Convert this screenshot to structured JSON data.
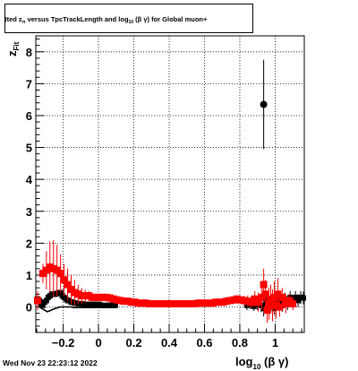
{
  "header": {
    "title_pre": "itted  z",
    "title_sub1": "π",
    "title_mid": "  versus  TpcTrackLength  and  log",
    "title_sub2": "10",
    "title_post": " (β γ) for Global muon+"
  },
  "footer": {
    "timestamp": "Wed Nov 23 22:23:12 2022"
  },
  "chart_data": {
    "type": "scatter",
    "title": "itted zπ versus TpcTrackLength and log10(βγ) for Global muon+",
    "xlabel_main": "log",
    "xlabel_sub": "10",
    "xlabel_tail": " (β γ)",
    "ylabel_main": "z",
    "ylabel_sub": "Fit",
    "xlim": [
      -0.355,
      1.165
    ],
    "ylim": [
      -0.8,
      8.5
    ],
    "grid": true,
    "xticks": [
      -0.2,
      0,
      0.2,
      0.4,
      0.6,
      0.8,
      1
    ],
    "xtick_labels": [
      "−0.2",
      "0",
      "0.2",
      "0.4",
      "0.6",
      "0.8",
      "1"
    ],
    "yticks": [
      0,
      1,
      2,
      3,
      4,
      5,
      6,
      7,
      8
    ],
    "ytick_labels": [
      "0",
      "1",
      "2",
      "3",
      "4",
      "5",
      "6",
      "7",
      "8"
    ],
    "series": [
      {
        "color": "#000000",
        "marker": "square",
        "points": [
          [
            -0.345,
            0.25,
            0.05
          ],
          [
            -0.335,
            0.2,
            0.05
          ],
          [
            -0.325,
            0.1,
            0.05
          ],
          [
            -0.315,
            0.05,
            0.05
          ],
          [
            -0.305,
            0.15,
            0.05
          ],
          [
            -0.295,
            0.2,
            0.05
          ],
          [
            -0.285,
            0.3,
            0.05
          ],
          [
            -0.275,
            0.35,
            0.05
          ],
          [
            -0.265,
            0.4,
            0.05
          ],
          [
            -0.255,
            0.4,
            0.05
          ],
          [
            -0.245,
            0.4,
            0.05
          ],
          [
            -0.235,
            0.42,
            0.05
          ],
          [
            -0.225,
            0.45,
            0.05
          ],
          [
            -0.215,
            0.45,
            0.05
          ],
          [
            -0.205,
            0.35,
            0.05
          ],
          [
            -0.195,
            0.3,
            0.05
          ],
          [
            -0.185,
            0.25,
            0.05
          ],
          [
            -0.175,
            0.2,
            0.05
          ],
          [
            -0.165,
            0.2,
            0.05
          ],
          [
            -0.155,
            0.15,
            0.05
          ],
          [
            -0.145,
            0.15,
            0.05
          ],
          [
            -0.135,
            0.12,
            0.05
          ],
          [
            -0.125,
            0.12,
            0.05
          ],
          [
            -0.115,
            0.1,
            0.05
          ],
          [
            -0.105,
            0.1,
            0.05
          ],
          [
            -0.095,
            0.1,
            0.05
          ],
          [
            -0.085,
            0.08,
            0.05
          ],
          [
            -0.075,
            0.08,
            0.05
          ],
          [
            -0.065,
            0.08,
            0.05
          ],
          [
            -0.055,
            0.08,
            0.05
          ],
          [
            -0.045,
            0.08,
            0.05
          ],
          [
            -0.035,
            0.08,
            0.05
          ],
          [
            -0.025,
            0.08,
            0.05
          ],
          [
            -0.015,
            0.08,
            0.05
          ],
          [
            -0.005,
            0.08,
            0.05
          ],
          [
            0.005,
            0.08,
            0.05
          ],
          [
            0.015,
            0.05,
            0.05
          ],
          [
            0.025,
            0.05,
            0.05
          ],
          [
            0.035,
            0.05,
            0.05
          ],
          [
            0.045,
            0.05,
            0.05
          ],
          [
            0.055,
            0.05,
            0.05
          ],
          [
            0.065,
            0.05,
            0.05
          ],
          [
            0.075,
            0.05,
            0.05
          ],
          [
            0.085,
            0.05,
            0.05
          ],
          [
            0.095,
            0.05,
            0.05
          ],
          [
            0.84,
            0.05,
            0.15
          ],
          [
            0.86,
            0.08,
            0.15
          ],
          [
            0.88,
            0.02,
            0.15
          ],
          [
            0.9,
            0.1,
            0.2
          ],
          [
            0.92,
            0.05,
            0.2
          ],
          [
            0.935,
            -0.05,
            0.25
          ],
          [
            0.95,
            0.12,
            0.2
          ],
          [
            0.965,
            0.05,
            0.2
          ],
          [
            0.98,
            0.15,
            0.2
          ],
          [
            0.995,
            -0.05,
            0.2
          ],
          [
            1.01,
            0.1,
            0.2
          ],
          [
            1.025,
            0.2,
            0.2
          ],
          [
            1.04,
            0.05,
            0.2
          ],
          [
            1.055,
            0.25,
            0.2
          ],
          [
            1.07,
            0.1,
            0.2
          ],
          [
            1.085,
            0.3,
            0.2
          ],
          [
            1.1,
            0.15,
            0.2
          ],
          [
            1.115,
            0.3,
            0.2
          ],
          [
            1.13,
            0.2,
            0.2
          ],
          [
            1.145,
            0.3,
            0.2
          ],
          [
            1.16,
            0.28,
            0.2
          ]
        ]
      },
      {
        "color": "#ff0000",
        "marker": "square",
        "points": [
          [
            -0.345,
            0.2,
            0.3
          ],
          [
            -0.315,
            1.05,
            0.3
          ],
          [
            -0.295,
            1.15,
            0.6
          ],
          [
            -0.275,
            1.25,
            0.8
          ],
          [
            -0.255,
            1.2,
            0.9
          ],
          [
            -0.235,
            1.15,
            0.8
          ],
          [
            -0.215,
            1.05,
            0.6
          ],
          [
            -0.195,
            0.85,
            0.5
          ],
          [
            -0.175,
            0.7,
            0.5
          ],
          [
            -0.155,
            0.55,
            0.45
          ],
          [
            -0.135,
            0.45,
            0.4
          ],
          [
            -0.115,
            0.4,
            0.3
          ],
          [
            -0.095,
            0.35,
            0.25
          ],
          [
            -0.075,
            0.35,
            0.2
          ],
          [
            -0.055,
            0.35,
            0.15
          ],
          [
            -0.035,
            0.3,
            0.12
          ],
          [
            -0.015,
            0.3,
            0.1
          ],
          [
            0.005,
            0.3,
            0.08
          ],
          [
            0.025,
            0.3,
            0.06
          ],
          [
            0.045,
            0.3,
            0.05
          ],
          [
            0.065,
            0.28,
            0.05
          ],
          [
            0.085,
            0.25,
            0.05
          ],
          [
            0.105,
            0.22,
            0.05
          ],
          [
            0.125,
            0.2,
            0.05
          ],
          [
            0.145,
            0.18,
            0.05
          ],
          [
            0.165,
            0.18,
            0.05
          ],
          [
            0.185,
            0.15,
            0.05
          ],
          [
            0.205,
            0.15,
            0.05
          ],
          [
            0.225,
            0.12,
            0.05
          ],
          [
            0.245,
            0.12,
            0.05
          ],
          [
            0.265,
            0.12,
            0.05
          ],
          [
            0.285,
            0.1,
            0.05
          ],
          [
            0.305,
            0.1,
            0.05
          ],
          [
            0.325,
            0.1,
            0.05
          ],
          [
            0.345,
            0.1,
            0.05
          ],
          [
            0.365,
            0.1,
            0.05
          ],
          [
            0.385,
            0.1,
            0.05
          ],
          [
            0.405,
            0.1,
            0.05
          ],
          [
            0.425,
            0.1,
            0.05
          ],
          [
            0.445,
            0.1,
            0.05
          ],
          [
            0.465,
            0.1,
            0.05
          ],
          [
            0.485,
            0.1,
            0.05
          ],
          [
            0.505,
            0.1,
            0.05
          ],
          [
            0.525,
            0.1,
            0.05
          ],
          [
            0.545,
            0.1,
            0.05
          ],
          [
            0.565,
            0.12,
            0.05
          ],
          [
            0.585,
            0.12,
            0.05
          ],
          [
            0.605,
            0.12,
            0.05
          ],
          [
            0.625,
            0.12,
            0.05
          ],
          [
            0.645,
            0.12,
            0.05
          ],
          [
            0.665,
            0.15,
            0.05
          ],
          [
            0.685,
            0.15,
            0.05
          ],
          [
            0.705,
            0.15,
            0.05
          ],
          [
            0.725,
            0.18,
            0.06
          ],
          [
            0.745,
            0.2,
            0.07
          ],
          [
            0.765,
            0.22,
            0.08
          ],
          [
            0.785,
            0.25,
            0.1
          ],
          [
            0.805,
            0.22,
            0.12
          ],
          [
            0.825,
            0.2,
            0.15
          ],
          [
            0.845,
            0.18,
            0.18
          ],
          [
            0.865,
            0.15,
            0.2
          ],
          [
            0.885,
            0.25,
            0.25
          ],
          [
            0.905,
            0.15,
            0.3
          ],
          [
            0.925,
            0.3,
            0.4
          ],
          [
            0.935,
            0.7,
            0.5
          ],
          [
            0.945,
            0.4,
            0.45
          ],
          [
            0.955,
            -0.1,
            0.4
          ],
          [
            0.965,
            0.1,
            0.5
          ],
          [
            0.975,
            0.25,
            0.45
          ],
          [
            0.985,
            0.05,
            0.5
          ],
          [
            0.995,
            0.3,
            0.5
          ],
          [
            1.005,
            0.05,
            0.4
          ],
          [
            1.015,
            0.4,
            0.5
          ],
          [
            1.025,
            0.0,
            0.3
          ],
          [
            1.04,
            0.3,
            0.3
          ],
          [
            1.06,
            0.1,
            0.3
          ],
          [
            1.08,
            0.2,
            0.2
          ],
          [
            1.1,
            0.1,
            0.2
          ]
        ]
      },
      {
        "color": "#000000",
        "marker": "line",
        "points": [
          [
            -0.335,
            0.0
          ],
          [
            -0.32,
            -0.05
          ],
          [
            -0.305,
            -0.1
          ],
          [
            -0.29,
            -0.15
          ],
          [
            -0.275,
            -0.12
          ],
          [
            -0.26,
            -0.08
          ],
          [
            -0.245,
            -0.05
          ],
          [
            -0.23,
            -0.02
          ],
          [
            -0.215,
            0.0
          ],
          [
            -0.2,
            0.0
          ],
          [
            -0.185,
            0.0
          ],
          [
            -0.17,
            0.0
          ],
          [
            -0.155,
            0.0
          ],
          [
            -0.14,
            -0.02
          ],
          [
            -0.125,
            -0.02
          ],
          [
            -0.11,
            -0.02
          ],
          [
            -0.095,
            -0.02
          ],
          [
            -0.08,
            -0.02
          ],
          [
            -0.065,
            -0.02
          ],
          [
            -0.05,
            -0.02
          ],
          [
            -0.035,
            -0.02
          ],
          [
            -0.02,
            -0.02
          ],
          [
            -0.005,
            -0.02
          ],
          [
            0.01,
            -0.02
          ],
          [
            0.025,
            -0.02
          ],
          [
            0.04,
            -0.02
          ],
          [
            0.055,
            -0.02
          ],
          [
            0.07,
            -0.02
          ],
          [
            0.085,
            -0.02
          ]
        ]
      },
      {
        "color": "#000000",
        "marker": "circle",
        "points": [
          [
            0.935,
            6.35,
            1.4
          ]
        ]
      }
    ]
  }
}
